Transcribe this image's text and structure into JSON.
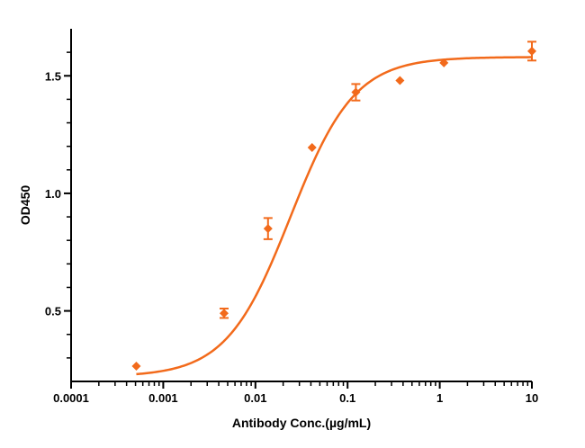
{
  "chart_data": {
    "type": "scatter",
    "title": "",
    "xlabel": "Antibody Conc.(µg/mL)",
    "ylabel": "OD450",
    "x_scale": "log",
    "xlim": [
      0.0001,
      10
    ],
    "ylim": [
      0.2,
      1.7
    ],
    "x_ticks": [
      0.0001,
      0.001,
      0.01,
      0.1,
      1,
      10
    ],
    "x_tick_labels": [
      "0.0001",
      "0.001",
      "0.01",
      "0.1",
      "1",
      "10"
    ],
    "y_ticks": [
      0.5,
      1.0,
      1.5
    ],
    "y_tick_labels": [
      "0.5",
      "1.0",
      "1.5"
    ],
    "grid": false,
    "legend": "none",
    "color": "#f26a1b",
    "series": [
      {
        "points": [
          {
            "x": 0.00051,
            "y": 0.265,
            "err": 0.0
          },
          {
            "x": 0.00457,
            "y": 0.49,
            "err": 0.02
          },
          {
            "x": 0.0137,
            "y": 0.85,
            "err": 0.045
          },
          {
            "x": 0.0412,
            "y": 1.195,
            "err": 0.0
          },
          {
            "x": 0.123,
            "y": 1.43,
            "err": 0.035
          },
          {
            "x": 0.37,
            "y": 1.48,
            "err": 0.0
          },
          {
            "x": 1.11,
            "y": 1.555,
            "err": 0.0
          },
          {
            "x": 10,
            "y": 1.605,
            "err": 0.04
          }
        ],
        "fit": {
          "bottom": 0.22,
          "top": 1.58,
          "ec50": 0.024,
          "hill": 1.25
        }
      }
    ]
  }
}
